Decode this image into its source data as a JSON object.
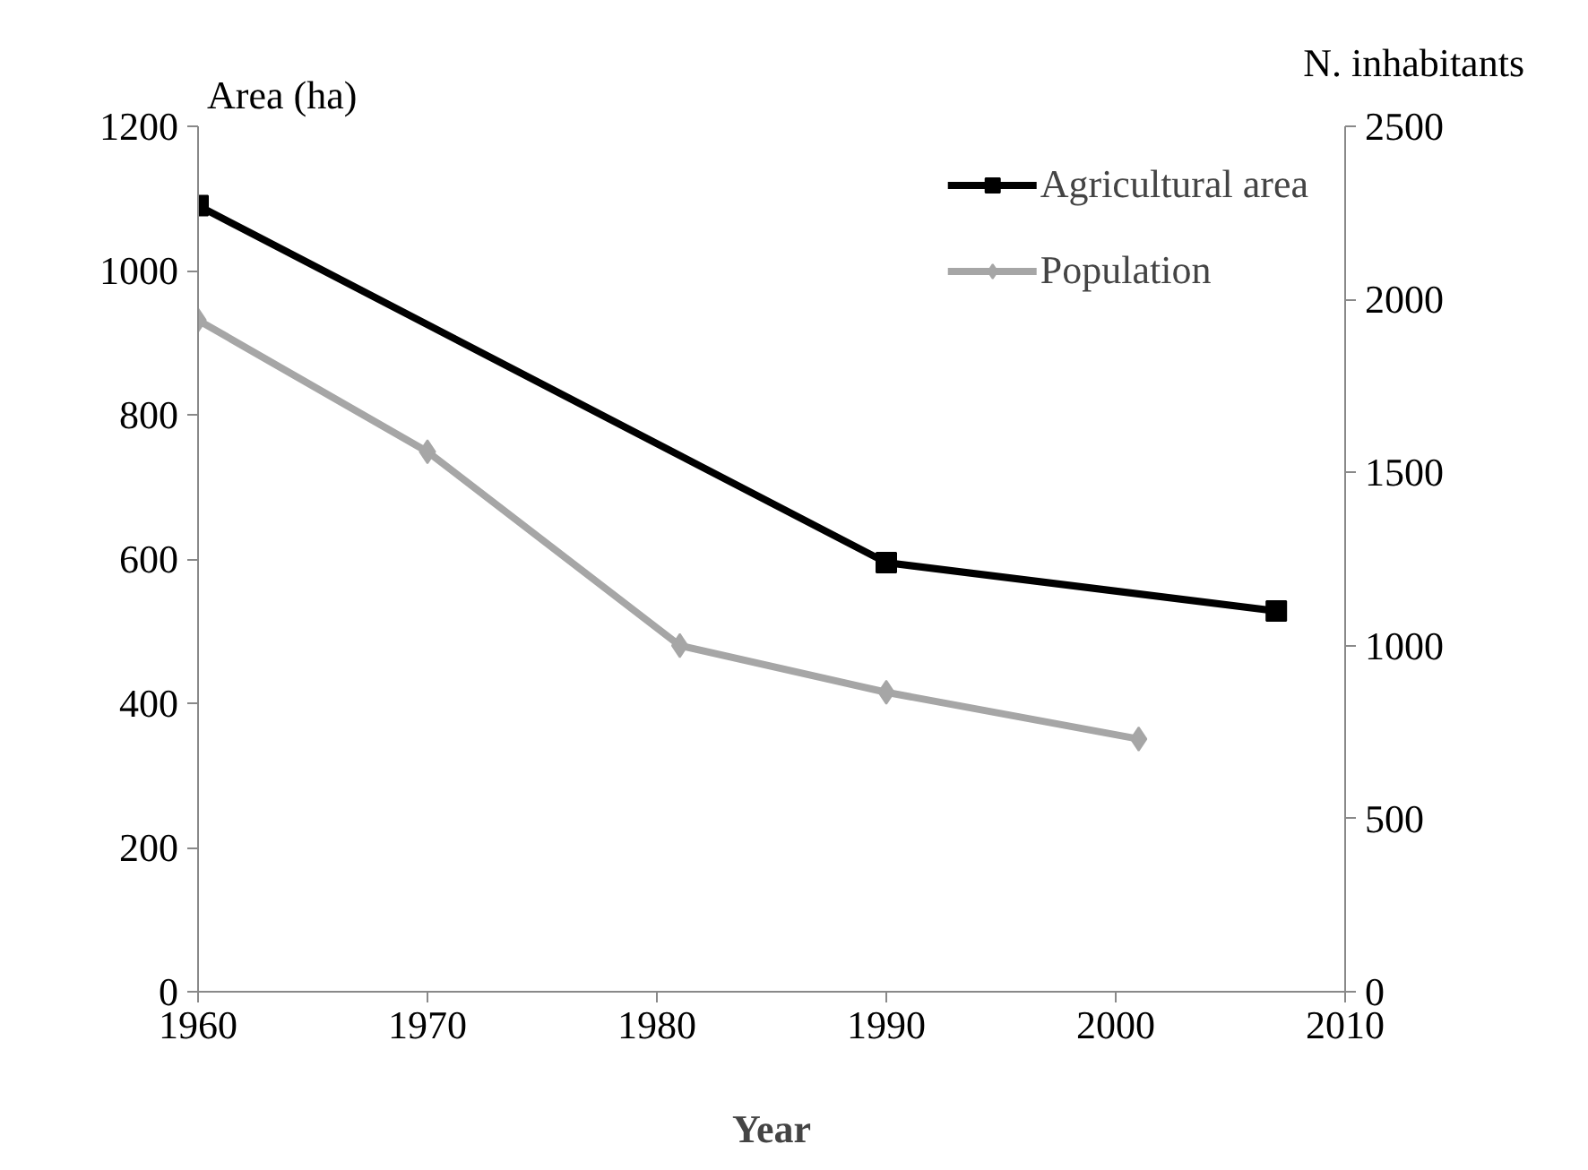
{
  "chart_data": {
    "type": "line",
    "xlabel": "Year",
    "ylabel": "Area (ha)",
    "y2label": "N. inhabitants",
    "series": [
      {
        "name": "Agricultural area",
        "color": "#000000",
        "marker": "square",
        "x": [
          1960,
          1990,
          2007
        ],
        "values": [
          1090,
          595,
          528
        ]
      },
      {
        "name": "Population",
        "color": "#a6a6a6",
        "marker": "diamond",
        "axis": "y2",
        "x": [
          1960,
          1970,
          1981,
          1990,
          2001
        ],
        "values": [
          1940,
          1560,
          1000,
          865,
          730
        ]
      }
    ],
    "xlim": [
      1960,
      2010
    ],
    "xticks": [
      1960,
      1970,
      1980,
      1990,
      2000,
      2010
    ],
    "ylim": [
      0,
      1200
    ],
    "yticks": [
      0,
      200,
      400,
      600,
      800,
      1000,
      1200
    ],
    "y2lim": [
      0,
      2500
    ],
    "y2ticks": [
      0,
      500,
      1000,
      1500,
      2000,
      2500
    ],
    "grid": false,
    "legend": "top right"
  }
}
